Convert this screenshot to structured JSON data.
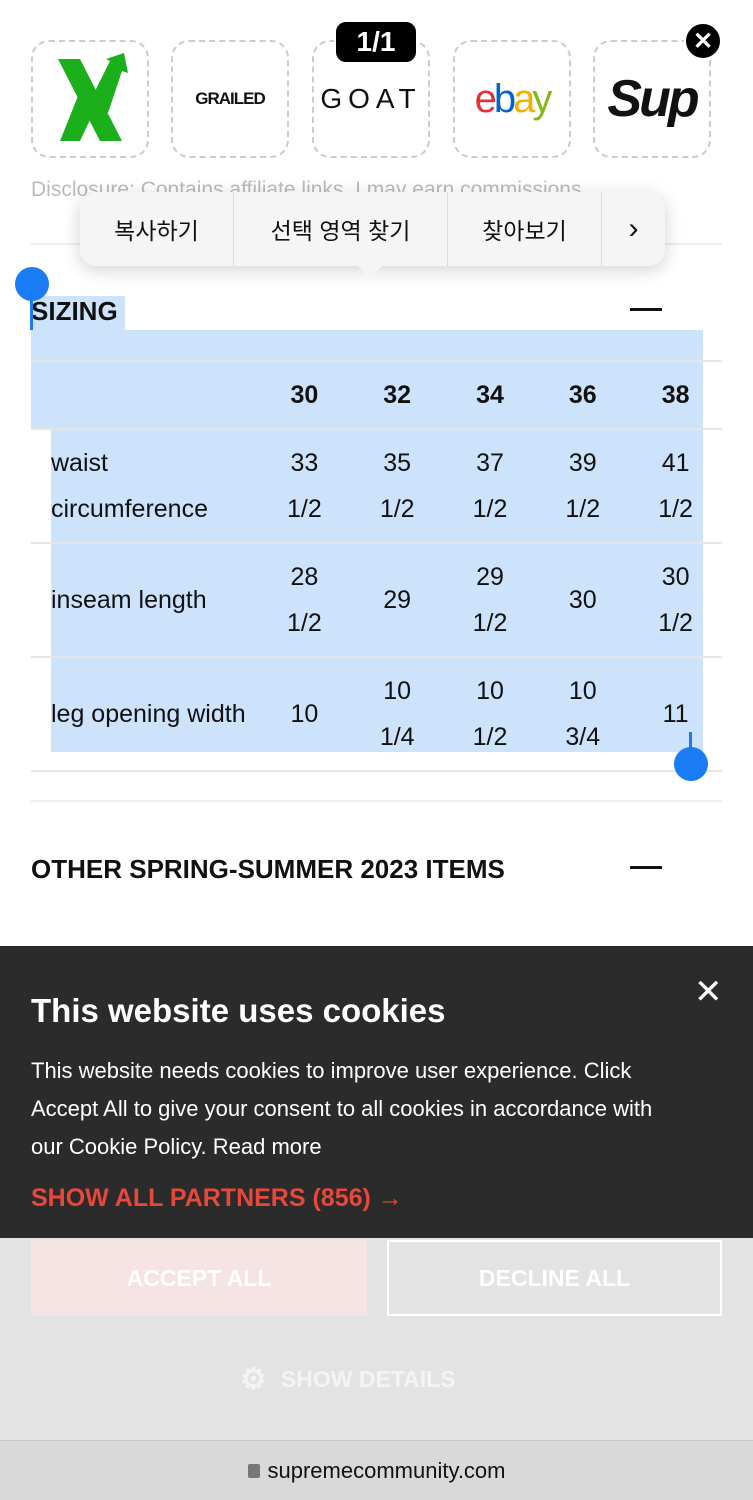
{
  "logos": [
    "X",
    "GRAILED",
    "GOAT",
    "ebay",
    "Sup"
  ],
  "image_counter": "1/1",
  "disclosure": "Disclosure: Contains affiliate links. I may earn commissions.",
  "context_menu": {
    "items": [
      "복사하기",
      "선택 영역 찾기",
      "찾아보기"
    ],
    "more": "›"
  },
  "sizing": {
    "title": "SIZING",
    "columns": [
      "30",
      "32",
      "34",
      "36",
      "38"
    ],
    "rows": [
      {
        "label": "waist circumference",
        "values": [
          "33 1/2",
          "35 1/2",
          "37 1/2",
          "39 1/2",
          "41 1/2"
        ]
      },
      {
        "label": "inseam length",
        "values": [
          "28 1/2",
          "29",
          "29 1/2",
          "30",
          "30 1/2"
        ]
      },
      {
        "label": "leg opening width",
        "values": [
          "10",
          "10 1/4",
          "10 1/2",
          "10 3/4",
          "11"
        ]
      }
    ]
  },
  "other_title": "OTHER SPRING-SUMMER 2023 ITEMS",
  "cookie": {
    "title": "This website uses cookies",
    "body": "This website needs cookies to improve user experience. Click Accept All to give your consent to all cookies in accordance with our Cookie Policy. Read more",
    "partners": "SHOW ALL PARTNERS (856) →",
    "accept": "ACCEPT ALL",
    "decline": "DECLINE ALL",
    "details": "SHOW DETAILS"
  },
  "url": "supremecommunity.com",
  "colors": {
    "selection": "#cde3fb",
    "handle": "#1a7cf5",
    "partners": "#e8473b"
  }
}
